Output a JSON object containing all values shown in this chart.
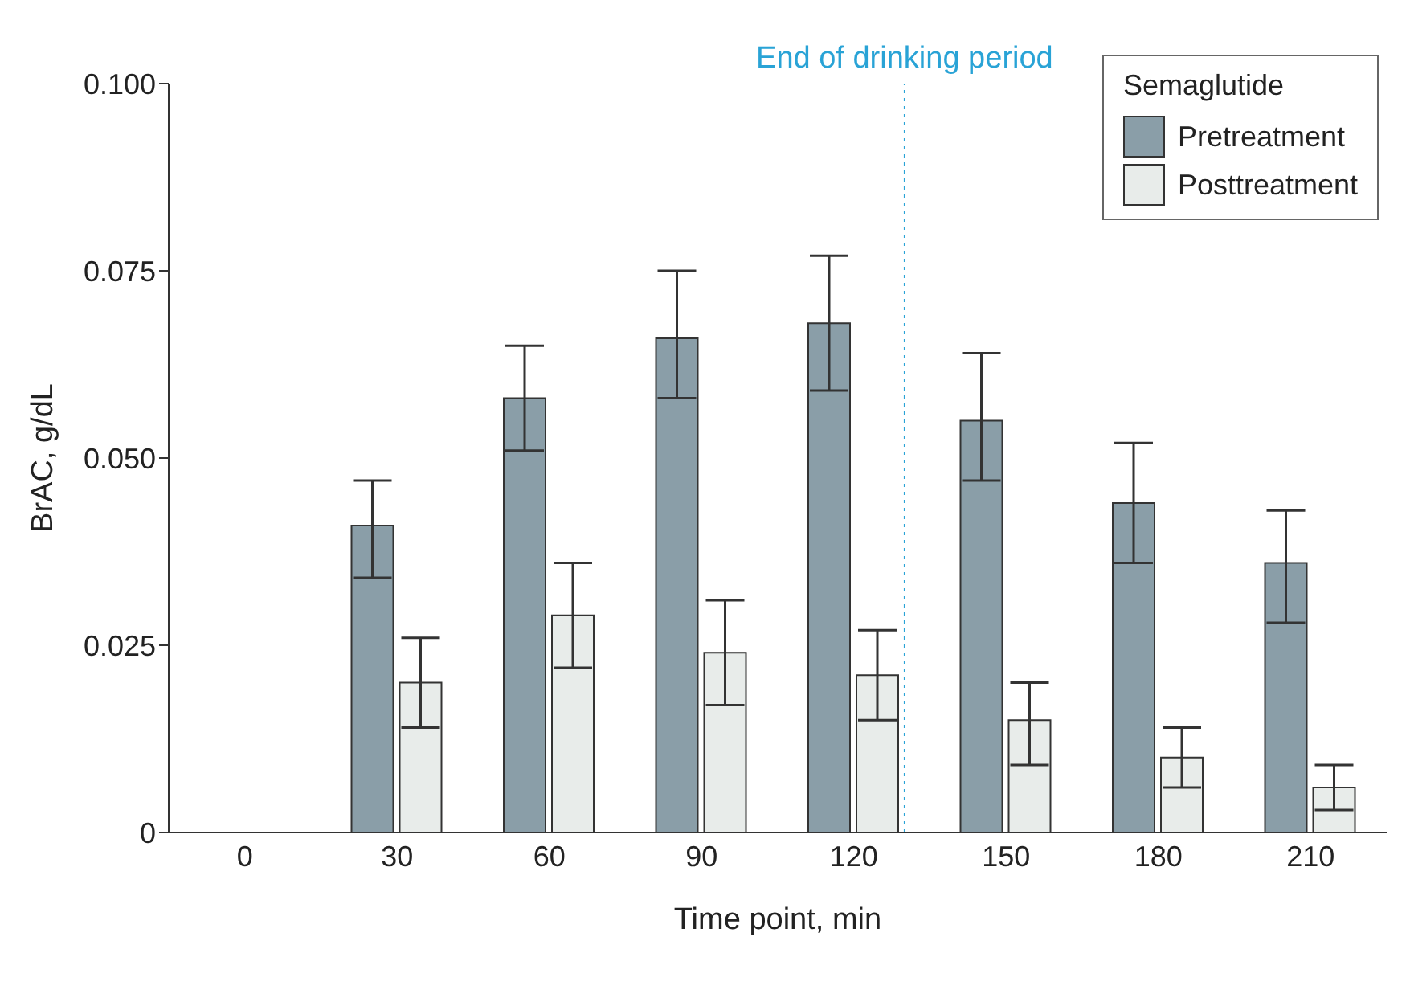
{
  "chart_data": {
    "type": "bar",
    "xlabel": "Time point, min",
    "ylabel": "BrAC, g/dL",
    "legend_title": "Semaglutide",
    "x": [
      30,
      60,
      90,
      120,
      150,
      180,
      210
    ],
    "xlim": [
      -15,
      225
    ],
    "xticks": [
      0,
      30,
      60,
      90,
      120,
      150,
      180,
      210
    ],
    "ylim": [
      0,
      0.1
    ],
    "yticks": [
      {
        "value": 0,
        "label": "0"
      },
      0.025,
      {
        "value": 0.05,
        "label": "0.050"
      },
      0.075,
      {
        "value": 0.1,
        "label": "0.100"
      }
    ],
    "series": [
      {
        "name": "Pretreatment",
        "color": "#8a9ea8",
        "values": [
          0.041,
          0.058,
          0.066,
          0.068,
          0.055,
          0.044,
          0.036
        ],
        "errors": [
          [
            0.034,
            0.047
          ],
          [
            0.051,
            0.065
          ],
          [
            0.058,
            0.075
          ],
          [
            0.059,
            0.077
          ],
          [
            0.047,
            0.064
          ],
          [
            0.036,
            0.052
          ],
          [
            0.028,
            0.043
          ]
        ]
      },
      {
        "name": "Posttreatment",
        "color": "#e8ecea",
        "values": [
          0.02,
          0.029,
          0.024,
          0.021,
          0.015,
          0.01,
          0.006
        ],
        "errors": [
          [
            0.014,
            0.026
          ],
          [
            0.022,
            0.036
          ],
          [
            0.017,
            0.031
          ],
          [
            0.015,
            0.027
          ],
          [
            0.009,
            0.02
          ],
          [
            0.006,
            0.014
          ],
          [
            0.003,
            0.009
          ]
        ]
      }
    ],
    "ref_lines": [
      {
        "axis": "x",
        "value": 130,
        "label": "End of drinking period",
        "color": "#29a3d6",
        "line_style": "dotted"
      }
    ],
    "legend": "top right",
    "grid": false
  }
}
